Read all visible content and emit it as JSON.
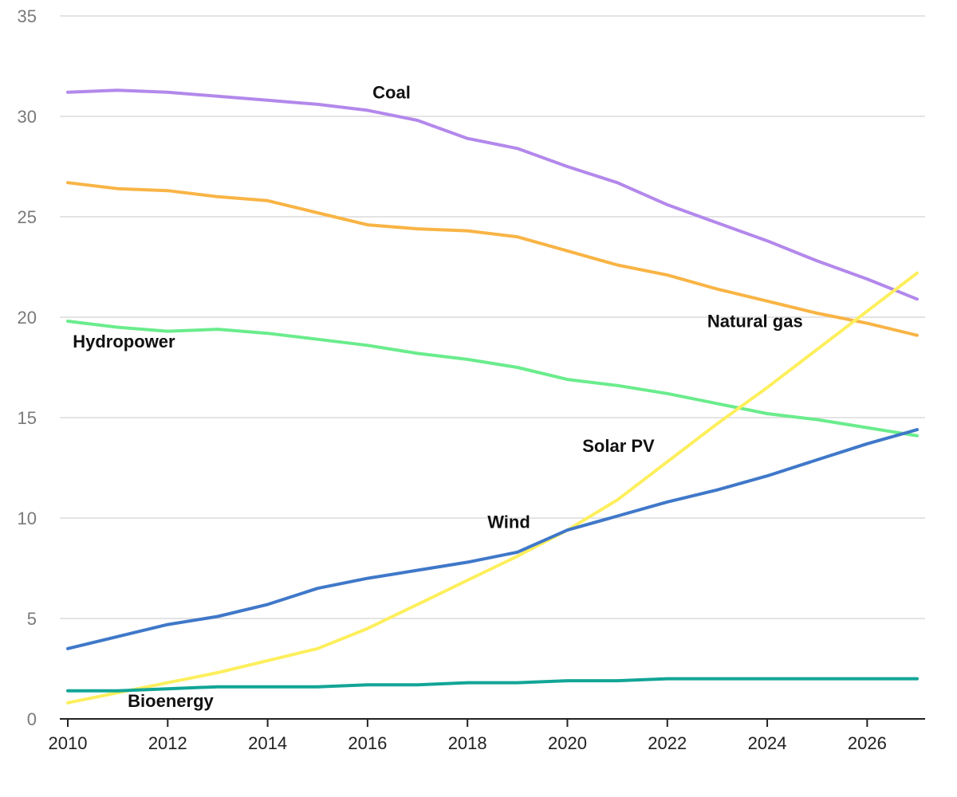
{
  "chart_data": {
    "type": "line",
    "title": "",
    "xlabel": "",
    "ylabel": "",
    "x": [
      2010,
      2011,
      2012,
      2013,
      2014,
      2015,
      2016,
      2017,
      2018,
      2019,
      2020,
      2021,
      2022,
      2023,
      2024,
      2025,
      2026,
      2027
    ],
    "xlim": [
      2010,
      2027
    ],
    "ylim": [
      0,
      35
    ],
    "x_ticks": [
      2010,
      2012,
      2014,
      2016,
      2018,
      2020,
      2022,
      2024,
      2026
    ],
    "y_ticks": [
      0,
      5,
      10,
      15,
      20,
      25,
      30,
      35
    ],
    "grid": "horizontal",
    "legend": "inline labels",
    "series": [
      {
        "name": "Coal",
        "color": "#b388eb",
        "values": [
          31.2,
          31.3,
          31.2,
          31.0,
          30.8,
          30.6,
          30.3,
          29.8,
          28.9,
          28.4,
          27.5,
          26.7,
          25.6,
          24.7,
          23.8,
          22.8,
          21.9,
          20.9
        ]
      },
      {
        "name": "Natural gas",
        "color": "#f9b445",
        "values": [
          26.7,
          26.4,
          26.3,
          26.0,
          25.8,
          25.2,
          24.6,
          24.4,
          24.3,
          24.0,
          23.3,
          22.6,
          22.1,
          21.4,
          20.8,
          20.2,
          19.7,
          19.1
        ]
      },
      {
        "name": "Hydropower",
        "color": "#6aec8c",
        "values": [
          19.8,
          19.5,
          19.3,
          19.4,
          19.2,
          18.9,
          18.6,
          18.2,
          17.9,
          17.5,
          16.9,
          16.6,
          16.2,
          15.7,
          15.2,
          14.9,
          14.5,
          14.1
        ]
      },
      {
        "name": "Solar PV",
        "color": "#fdef5d",
        "values": [
          0.8,
          1.3,
          1.8,
          2.3,
          2.9,
          3.5,
          4.5,
          5.7,
          6.9,
          8.1,
          9.4,
          10.9,
          12.8,
          14.7,
          16.5,
          18.4,
          20.3,
          22.2
        ]
      },
      {
        "name": "Wind",
        "color": "#3f78c9",
        "values": [
          3.5,
          4.1,
          4.7,
          5.1,
          5.7,
          6.5,
          7.0,
          7.4,
          7.8,
          8.3,
          9.4,
          10.1,
          10.8,
          11.4,
          12.1,
          12.9,
          13.7,
          14.4
        ]
      },
      {
        "name": "Bioenergy",
        "color": "#12a597",
        "values": [
          1.4,
          1.4,
          1.5,
          1.6,
          1.6,
          1.6,
          1.7,
          1.7,
          1.8,
          1.8,
          1.9,
          1.9,
          2.0,
          2.0,
          2.0,
          2.0,
          2.0,
          2.0
        ]
      }
    ],
    "annotations": [
      {
        "series": "Coal",
        "text": "Coal",
        "x": 2016.1,
        "y": 30.9
      },
      {
        "series": "Natural gas",
        "text": "Natural gas",
        "x": 2022.8,
        "y": 19.5
      },
      {
        "series": "Hydropower",
        "text": "Hydropower",
        "x": 2010.1,
        "y": 18.5
      },
      {
        "series": "Solar PV",
        "text": "Solar PV",
        "x": 2020.3,
        "y": 13.3
      },
      {
        "series": "Wind",
        "text": "Wind",
        "x": 2018.4,
        "y": 9.5
      },
      {
        "series": "Bioenergy",
        "text": "Bioenergy",
        "x": 2011.2,
        "y": 0.6
      }
    ]
  }
}
